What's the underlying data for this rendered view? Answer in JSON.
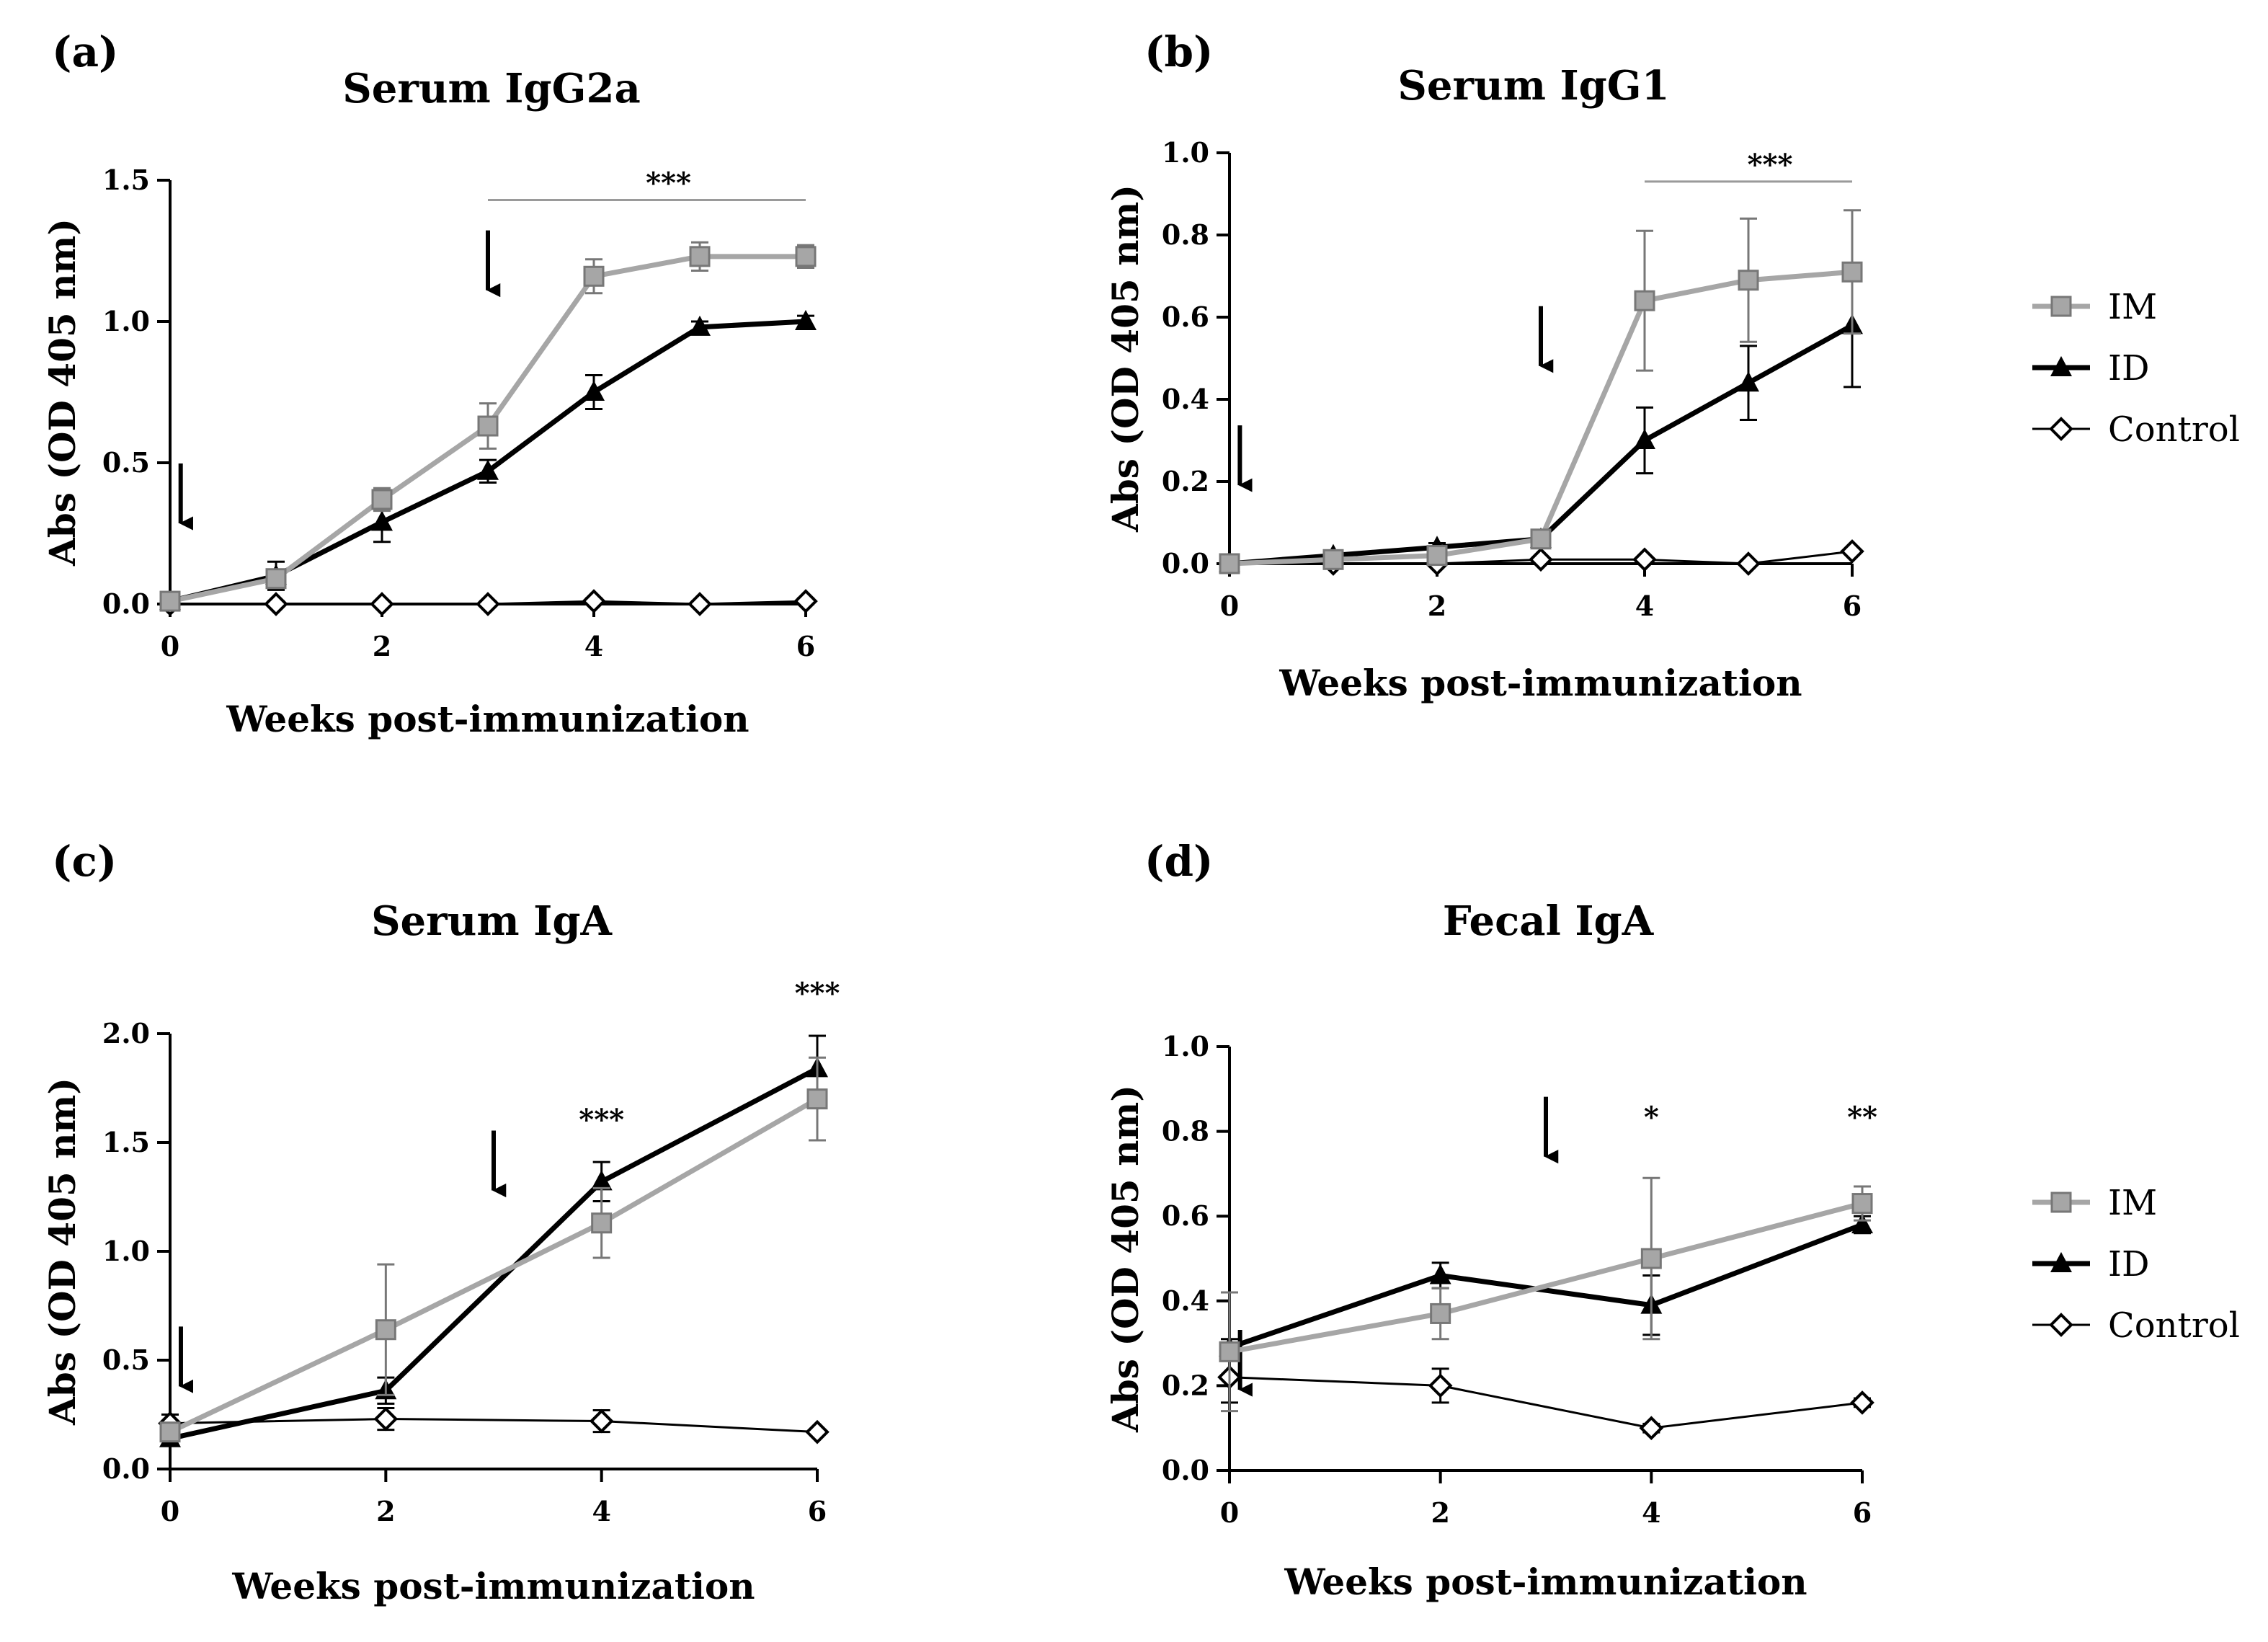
{
  "colors": {
    "im": "#a6a6a6",
    "im_marker_edge": "#777777",
    "id": "#000000",
    "control": "#000000",
    "sig_line": "#9a9a9a"
  },
  "legend": [
    "IM",
    "ID",
    "Control"
  ],
  "chart_data": [
    {
      "type": "line",
      "panel": "(a)",
      "title": "Serum IgG2a",
      "xlabel": "Weeks post-immunization",
      "ylabel": "Abs (OD 405 nm)",
      "xlim": [
        0,
        6
      ],
      "ylim": [
        0,
        1.5
      ],
      "xticks": [
        0,
        2,
        4,
        6
      ],
      "yticks": [
        0.0,
        0.5,
        1.0,
        1.5
      ],
      "ytick_labels": [
        "0.0",
        "0.5",
        "1.0",
        "1.5"
      ],
      "arrows_at_weeks": [
        0.1,
        3
      ],
      "series": [
        {
          "name": "IM",
          "x": [
            0,
            1,
            2,
            3,
            4,
            5,
            6
          ],
          "y": [
            0.01,
            0.09,
            0.37,
            0.63,
            1.16,
            1.23,
            1.23
          ],
          "err": [
            0.02,
            0.03,
            0.04,
            0.08,
            0.06,
            0.05,
            0.04
          ]
        },
        {
          "name": "ID",
          "x": [
            0,
            1,
            2,
            3,
            4,
            5,
            6
          ],
          "y": [
            0.01,
            0.1,
            0.29,
            0.47,
            0.75,
            0.98,
            1.0
          ],
          "err": [
            0.02,
            0.05,
            0.07,
            0.04,
            0.06,
            0.02,
            0.02
          ]
        },
        {
          "name": "Control",
          "x": [
            0,
            1,
            2,
            3,
            4,
            5,
            6
          ],
          "y": [
            0.0,
            0.0,
            0.0,
            0.0,
            0.01,
            0.0,
            0.01
          ],
          "err": [
            0.01,
            0.01,
            0.01,
            0.01,
            0.01,
            0.01,
            0.01
          ]
        }
      ],
      "significance": [
        {
          "label": "***",
          "bar": [
            3,
            6
          ],
          "y": 1.43
        }
      ]
    },
    {
      "type": "line",
      "panel": "(b)",
      "title": "Serum IgG1",
      "xlabel": "Weeks post-immunization",
      "ylabel": "Abs (OD 405 nm)",
      "xlim": [
        0,
        6
      ],
      "ylim": [
        0,
        1.0
      ],
      "xticks": [
        0,
        2,
        4,
        6
      ],
      "yticks": [
        0.0,
        0.2,
        0.4,
        0.6,
        0.8,
        1.0
      ],
      "ytick_labels": [
        "0.0",
        "0.2",
        "0.4",
        "0.6",
        "0.8",
        "1.0"
      ],
      "arrows_at_weeks": [
        0.1,
        3
      ],
      "series": [
        {
          "name": "IM",
          "x": [
            0,
            1,
            2,
            3,
            4,
            5,
            6
          ],
          "y": [
            0.0,
            0.01,
            0.02,
            0.06,
            0.64,
            0.69,
            0.71
          ],
          "err": [
            0.01,
            0.01,
            0.01,
            0.01,
            0.17,
            0.15,
            0.15
          ]
        },
        {
          "name": "ID",
          "x": [
            0,
            1,
            2,
            3,
            4,
            5,
            6
          ],
          "y": [
            0.0,
            0.02,
            0.04,
            0.06,
            0.3,
            0.44,
            0.58
          ],
          "err": [
            0.01,
            0.01,
            0.01,
            0.01,
            0.08,
            0.09,
            0.15
          ]
        },
        {
          "name": "Control",
          "x": [
            0,
            1,
            2,
            3,
            4,
            5,
            6
          ],
          "y": [
            0.0,
            0.0,
            0.0,
            0.01,
            0.01,
            0.0,
            0.03
          ],
          "err": [
            0.005,
            0.005,
            0.005,
            0.005,
            0.005,
            0.005,
            0.005
          ]
        }
      ],
      "significance": [
        {
          "label": "***",
          "bar": [
            4,
            6
          ],
          "y": 0.93
        }
      ]
    },
    {
      "type": "line",
      "panel": "(c)",
      "title": "Serum IgA",
      "xlabel": "Weeks post-immunization",
      "ylabel": "Abs (OD 405 nm)",
      "xlim": [
        0,
        6
      ],
      "ylim": [
        0,
        2.0
      ],
      "xticks": [
        0,
        2,
        4,
        6
      ],
      "yticks": [
        0.0,
        0.5,
        1.0,
        1.5,
        2.0
      ],
      "ytick_labels": [
        "0.0",
        "0.5",
        "1.0",
        "1.5",
        "2.0"
      ],
      "arrows_at_weeks": [
        0.1,
        3
      ],
      "series": [
        {
          "name": "IM",
          "x": [
            0,
            2,
            4,
            6
          ],
          "y": [
            0.17,
            0.64,
            1.13,
            1.7
          ],
          "err": [
            0.04,
            0.3,
            0.16,
            0.19
          ]
        },
        {
          "name": "ID",
          "x": [
            0,
            2,
            4,
            6
          ],
          "y": [
            0.14,
            0.36,
            1.32,
            1.84
          ],
          "err": [
            0.03,
            0.06,
            0.09,
            0.15
          ]
        },
        {
          "name": "Control",
          "x": [
            0,
            2,
            4,
            6
          ],
          "y": [
            0.21,
            0.23,
            0.22,
            0.17
          ],
          "err": [
            0.04,
            0.05,
            0.05,
            0.01
          ]
        }
      ],
      "significance": [
        {
          "label": "***",
          "at": 4,
          "y": 1.56
        },
        {
          "label": "***",
          "at": 6,
          "y": 2.14
        }
      ]
    },
    {
      "type": "line",
      "panel": "(d)",
      "title": "Fecal IgA",
      "xlabel": "Weeks post-immunization",
      "ylabel": "Abs (OD 405 nm)",
      "xlim": [
        0,
        6
      ],
      "ylim": [
        0,
        1.0
      ],
      "xticks": [
        0,
        2,
        4,
        6
      ],
      "yticks": [
        0.0,
        0.2,
        0.4,
        0.6,
        0.8,
        1.0
      ],
      "ytick_labels": [
        "0.0",
        "0.2",
        "0.4",
        "0.6",
        "0.8",
        "1.0"
      ],
      "arrows_at_weeks": [
        0.1,
        3
      ],
      "series": [
        {
          "name": "IM",
          "x": [
            0,
            2,
            4,
            6
          ],
          "y": [
            0.28,
            0.37,
            0.5,
            0.63
          ],
          "err": [
            0.14,
            0.06,
            0.19,
            0.04
          ]
        },
        {
          "name": "ID",
          "x": [
            0,
            2,
            4,
            6
          ],
          "y": [
            0.29,
            0.46,
            0.39,
            0.58
          ],
          "err": [
            0.02,
            0.03,
            0.07,
            0.02
          ]
        },
        {
          "name": "Control",
          "x": [
            0,
            2,
            4,
            6
          ],
          "y": [
            0.22,
            0.2,
            0.1,
            0.16
          ],
          "err": [
            0.06,
            0.04,
            0.01,
            0.01
          ]
        }
      ],
      "significance": [
        {
          "label": "*",
          "at": 4,
          "y": 0.81
        },
        {
          "label": "**",
          "at": 6,
          "y": 0.81
        }
      ]
    }
  ]
}
